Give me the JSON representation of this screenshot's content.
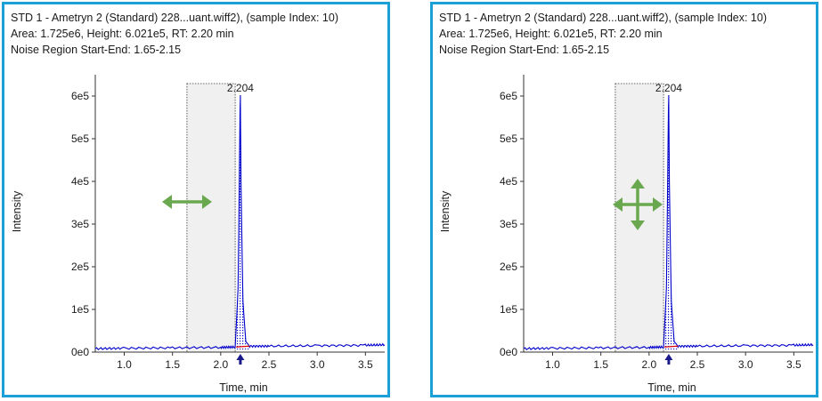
{
  "panels": [
    {
      "title": "STD 1 - Ametryn 2 (Standard) 228...uant.wiff2), (sample Index: 10)",
      "area_line": "Area: 1.725e6, Height: 6.021e5, RT: 2.20 min",
      "noise_line": "Noise Region Start-End: 1.65-2.15",
      "cursor": "horizontal-resize-arrow-icon"
    },
    {
      "title": "STD 1 - Ametryn 2 (Standard) 228...uant.wiff2), (sample Index: 10)",
      "area_line": "Area: 1.725e6, Height: 6.021e5, RT: 2.20 min",
      "noise_line": "Noise Region Start-End: 1.65-2.15",
      "cursor": "move-arrows-icon"
    }
  ],
  "chart_data": [
    {
      "type": "line",
      "xlabel": "Time, min",
      "ylabel": "Intensity",
      "xlim": [
        0.7,
        3.7
      ],
      "ylim": [
        0,
        650000
      ],
      "x_ticks": [
        "1.0",
        "1.5",
        "2.0",
        "2.5",
        "3.0",
        "3.5"
      ],
      "y_ticks": [
        "0e0",
        "1e5",
        "2e5",
        "3e5",
        "4e5",
        "5e5",
        "6e5"
      ],
      "peak_label": "2.204",
      "noise_region": [
        1.65,
        2.15
      ],
      "series": [
        {
          "x": [
            0.7,
            1.0,
            1.5,
            2.0,
            2.15,
            2.18,
            2.2,
            2.204,
            2.21,
            2.23,
            2.26,
            2.3,
            2.5,
            3.0,
            3.5,
            3.7
          ],
          "y": [
            8000,
            9000,
            10000,
            11000,
            12000,
            150000,
            560000,
            602100,
            400000,
            120000,
            25000,
            14000,
            14000,
            15000,
            16000,
            17000
          ]
        }
      ],
      "colors": {
        "trace": "#0000cc",
        "baseline": "#e00000",
        "region_fill": "#f0f0f0",
        "border": "#1ba1d8",
        "arrow": "#6aa84f"
      }
    },
    {
      "type": "line",
      "xlabel": "Time, min",
      "ylabel": "Intensity",
      "xlim": [
        0.7,
        3.7
      ],
      "ylim": [
        0,
        650000
      ],
      "x_ticks": [
        "1.0",
        "1.5",
        "2.0",
        "2.5",
        "3.0",
        "3.5"
      ],
      "y_ticks": [
        "0e0",
        "1e5",
        "2e5",
        "3e5",
        "4e5",
        "5e5",
        "6e5"
      ],
      "peak_label": "2.204",
      "noise_region": [
        1.65,
        2.15
      ],
      "series": [
        {
          "x": [
            0.7,
            1.0,
            1.5,
            2.0,
            2.15,
            2.18,
            2.2,
            2.204,
            2.21,
            2.23,
            2.26,
            2.3,
            2.5,
            3.0,
            3.5,
            3.7
          ],
          "y": [
            8000,
            9000,
            10000,
            11000,
            12000,
            150000,
            560000,
            602100,
            400000,
            120000,
            25000,
            14000,
            14000,
            15000,
            16000,
            17000
          ]
        }
      ],
      "colors": {
        "trace": "#0000cc",
        "baseline": "#e00000",
        "region_fill": "#f0f0f0",
        "border": "#1ba1d8",
        "arrow": "#6aa84f"
      }
    }
  ]
}
